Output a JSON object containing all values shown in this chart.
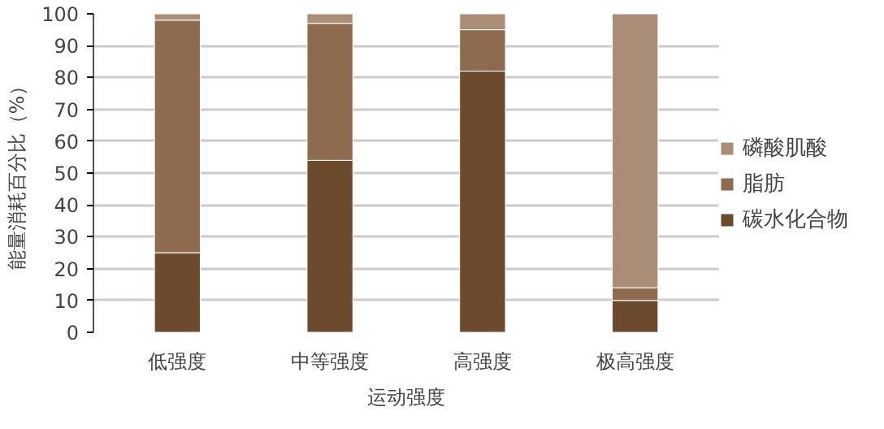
{
  "chart_data": {
    "type": "bar",
    "stacked": true,
    "categories": [
      "低强度",
      "中等强度",
      "高强度",
      "极高强度"
    ],
    "series": [
      {
        "name": "碳水化合物",
        "color": "#6b4a2e",
        "values": [
          25,
          54,
          82,
          10
        ]
      },
      {
        "name": "脂肪",
        "color": "#8e6a4f",
        "values": [
          73,
          43,
          13,
          4
        ]
      },
      {
        "name": "磷酸肌酸",
        "color": "#a98d76",
        "values": [
          2,
          3,
          5,
          86
        ]
      }
    ],
    "xlabel": "运动强度",
    "ylabel": "能量消耗百分比（%）",
    "ylim": [
      0,
      100
    ],
    "yticks": [
      0,
      10,
      20,
      30,
      40,
      50,
      60,
      70,
      80,
      90,
      100
    ],
    "grid": "y",
    "legend": "right"
  }
}
